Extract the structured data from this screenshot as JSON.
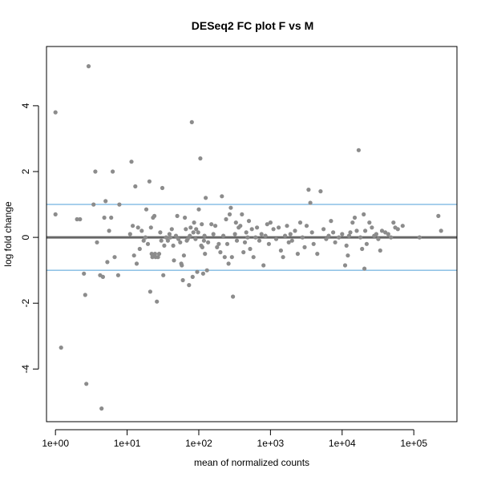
{
  "chart_data": {
    "type": "scatter",
    "title": "DESeq2 FC plot F vs M",
    "xlabel": "mean of normalized counts",
    "ylabel": "log fold change",
    "x_scale": "log10",
    "xlim": [
      0.75,
      400000
    ],
    "ylim": [
      -5.6,
      5.8
    ],
    "x_ticks": [
      {
        "value": 1,
        "label": "1e+00"
      },
      {
        "value": 10,
        "label": "1e+01"
      },
      {
        "value": 100,
        "label": "1e+02"
      },
      {
        "value": 1000,
        "label": "1e+03"
      },
      {
        "value": 10000,
        "label": "1e+04"
      },
      {
        "value": 100000,
        "label": "1e+05"
      }
    ],
    "y_ticks": [
      {
        "value": -4,
        "label": "-4"
      },
      {
        "value": -2,
        "label": "-2"
      },
      {
        "value": 0,
        "label": "0"
      },
      {
        "value": 2,
        "label": "2"
      },
      {
        "value": 4,
        "label": "4"
      }
    ],
    "reference_lines": [
      {
        "y": 0,
        "color": "#666666",
        "width": "thick"
      },
      {
        "y": 1,
        "color": "#4f9fd8",
        "width": "thin"
      },
      {
        "y": -1,
        "color": "#4f9fd8",
        "width": "thin"
      }
    ],
    "point_color": "#8c8c8c",
    "grid": false,
    "points": [
      [
        1.0,
        3.8
      ],
      [
        1.0,
        0.7
      ],
      [
        1.2,
        -3.35
      ],
      [
        2.0,
        0.55
      ],
      [
        2.2,
        0.55
      ],
      [
        2.5,
        -1.1
      ],
      [
        2.6,
        -1.75
      ],
      [
        2.7,
        -4.45
      ],
      [
        2.9,
        5.2
      ],
      [
        3.4,
        1.0
      ],
      [
        3.6,
        2.0
      ],
      [
        3.8,
        -0.15
      ],
      [
        4.2,
        -1.15
      ],
      [
        4.4,
        -5.2
      ],
      [
        4.6,
        -1.2
      ],
      [
        4.8,
        0.6
      ],
      [
        5.0,
        1.1
      ],
      [
        5.3,
        -0.75
      ],
      [
        5.6,
        0.2
      ],
      [
        6.0,
        0.6
      ],
      [
        6.3,
        2.0
      ],
      [
        6.7,
        -0.6
      ],
      [
        7.5,
        -1.15
      ],
      [
        7.8,
        1.0
      ],
      [
        11.0,
        0.1
      ],
      [
        11.5,
        2.3
      ],
      [
        12.0,
        0.35
      ],
      [
        12.5,
        -0.55
      ],
      [
        13.0,
        1.55
      ],
      [
        13.6,
        -0.8
      ],
      [
        14.2,
        0.3
      ],
      [
        15.0,
        -0.35
      ],
      [
        16.0,
        0.2
      ],
      [
        17.0,
        -0.1
      ],
      [
        18.0,
        0.0
      ],
      [
        18.5,
        0.85
      ],
      [
        19.5,
        -0.2
      ],
      [
        20.5,
        1.7
      ],
      [
        21.0,
        -1.65
      ],
      [
        21.5,
        0.3
      ],
      [
        22.0,
        -0.5
      ],
      [
        22.5,
        -0.6
      ],
      [
        23.0,
        0.6
      ],
      [
        23.5,
        -0.55
      ],
      [
        24.0,
        0.65
      ],
      [
        24.5,
        -0.5
      ],
      [
        25.0,
        -0.6
      ],
      [
        26.0,
        -1.95
      ],
      [
        27.0,
        -0.6
      ],
      [
        28.0,
        -0.5
      ],
      [
        29.0,
        0.15
      ],
      [
        30.0,
        -0.1
      ],
      [
        31.0,
        1.5
      ],
      [
        32.0,
        -1.15
      ],
      [
        33.0,
        -0.25
      ],
      [
        35.0,
        0.0
      ],
      [
        37.0,
        -0.1
      ],
      [
        39.0,
        0.1
      ],
      [
        40.0,
        0.0
      ],
      [
        42.0,
        0.25
      ],
      [
        44.0,
        -0.25
      ],
      [
        45.0,
        -0.7
      ],
      [
        48.0,
        0.05
      ],
      [
        50.0,
        0.65
      ],
      [
        52.0,
        -0.05
      ],
      [
        55.0,
        -0.15
      ],
      [
        57.0,
        -0.8
      ],
      [
        58.0,
        -0.85
      ],
      [
        60.0,
        -1.3
      ],
      [
        62.0,
        -0.55
      ],
      [
        64.0,
        0.6
      ],
      [
        66.0,
        0.25
      ],
      [
        68.0,
        -0.1
      ],
      [
        70.0,
        -0.05
      ],
      [
        73.0,
        -1.45
      ],
      [
        75.0,
        0.05
      ],
      [
        77.0,
        0.3
      ],
      [
        80.0,
        3.5
      ],
      [
        82.0,
        -1.2
      ],
      [
        84.0,
        0.15
      ],
      [
        86.0,
        0.45
      ],
      [
        90.0,
        -0.05
      ],
      [
        92.0,
        0.25
      ],
      [
        95.0,
        -1.05
      ],
      [
        98.0,
        0.15
      ],
      [
        100.0,
        0.85
      ],
      [
        105.0,
        2.4
      ],
      [
        108.0,
        -0.25
      ],
      [
        110.0,
        0.4
      ],
      [
        112.0,
        -0.3
      ],
      [
        115.0,
        -1.1
      ],
      [
        118.0,
        -0.1
      ],
      [
        120.0,
        0.05
      ],
      [
        122.0,
        -0.5
      ],
      [
        125.0,
        1.2
      ],
      [
        130.0,
        -1.0
      ],
      [
        135.0,
        -0.15
      ],
      [
        150.0,
        0.4
      ],
      [
        160.0,
        0.1
      ],
      [
        170.0,
        0.35
      ],
      [
        180.0,
        -0.3
      ],
      [
        190.0,
        -0.2
      ],
      [
        200.0,
        -0.45
      ],
      [
        210.0,
        1.25
      ],
      [
        220.0,
        0.05
      ],
      [
        230.0,
        -0.6
      ],
      [
        240.0,
        0.55
      ],
      [
        250.0,
        -0.2
      ],
      [
        260.0,
        -0.8
      ],
      [
        270.0,
        0.7
      ],
      [
        280.0,
        0.9
      ],
      [
        290.0,
        -0.6
      ],
      [
        300.0,
        -1.8
      ],
      [
        320.0,
        0.1
      ],
      [
        330.0,
        0.45
      ],
      [
        340.0,
        -0.1
      ],
      [
        360.0,
        0.3
      ],
      [
        380.0,
        0.35
      ],
      [
        400.0,
        0.7
      ],
      [
        420.0,
        -0.45
      ],
      [
        440.0,
        -0.15
      ],
      [
        460.0,
        0.15
      ],
      [
        480.0,
        0.0
      ],
      [
        500.0,
        0.5
      ],
      [
        520.0,
        -0.35
      ],
      [
        550.0,
        0.25
      ],
      [
        580.0,
        -0.6
      ],
      [
        620.0,
        0.0
      ],
      [
        650.0,
        0.3
      ],
      [
        700.0,
        -0.1
      ],
      [
        750.0,
        0.1
      ],
      [
        800.0,
        -0.85
      ],
      [
        850.0,
        0.05
      ],
      [
        900.0,
        0.4
      ],
      [
        950.0,
        -0.2
      ],
      [
        1000.0,
        0.45
      ],
      [
        1100.0,
        0.25
      ],
      [
        1200.0,
        -0.05
      ],
      [
        1300.0,
        0.3
      ],
      [
        1400.0,
        -0.4
      ],
      [
        1500.0,
        -0.6
      ],
      [
        1600.0,
        0.05
      ],
      [
        1700.0,
        0.35
      ],
      [
        1800.0,
        -0.15
      ],
      [
        1900.0,
        0.1
      ],
      [
        2000.0,
        -0.1
      ],
      [
        2200.0,
        0.2
      ],
      [
        2400.0,
        -0.5
      ],
      [
        2600.0,
        0.45
      ],
      [
        2800.0,
        0.0
      ],
      [
        3000.0,
        -0.3
      ],
      [
        3200.0,
        0.35
      ],
      [
        3400.0,
        1.45
      ],
      [
        3600.0,
        1.05
      ],
      [
        3800.0,
        0.15
      ],
      [
        4000.0,
        -0.2
      ],
      [
        4500.0,
        -0.5
      ],
      [
        5000.0,
        1.4
      ],
      [
        5500.0,
        0.25
      ],
      [
        6000.0,
        -0.05
      ],
      [
        6500.0,
        0.05
      ],
      [
        7000.0,
        0.5
      ],
      [
        7500.0,
        0.15
      ],
      [
        8000.0,
        -0.15
      ],
      [
        9000.0,
        0.0
      ],
      [
        10000.0,
        0.1
      ],
      [
        11000.0,
        -0.85
      ],
      [
        11500.0,
        -0.25
      ],
      [
        12000.0,
        -0.55
      ],
      [
        12500.0,
        0.05
      ],
      [
        13000.0,
        0.15
      ],
      [
        14000.0,
        0.45
      ],
      [
        15000.0,
        0.6
      ],
      [
        16000.0,
        0.2
      ],
      [
        17000.0,
        2.65
      ],
      [
        18000.0,
        0.0
      ],
      [
        19000.0,
        -0.35
      ],
      [
        20000.0,
        0.7
      ],
      [
        20500.0,
        -0.95
      ],
      [
        21000.0,
        0.2
      ],
      [
        22000.0,
        -0.2
      ],
      [
        24000.0,
        0.45
      ],
      [
        26000.0,
        0.3
      ],
      [
        28000.0,
        0.05
      ],
      [
        30000.0,
        0.1
      ],
      [
        32000.0,
        -0.05
      ],
      [
        34000.0,
        -0.4
      ],
      [
        36000.0,
        0.2
      ],
      [
        40000.0,
        0.15
      ],
      [
        44000.0,
        0.1
      ],
      [
        48000.0,
        0.0
      ],
      [
        52000.0,
        0.45
      ],
      [
        55000.0,
        0.3
      ],
      [
        60000.0,
        0.25
      ],
      [
        70000.0,
        0.35
      ],
      [
        120000.0,
        0.0
      ],
      [
        220000.0,
        0.65
      ],
      [
        240000.0,
        0.2
      ]
    ]
  }
}
